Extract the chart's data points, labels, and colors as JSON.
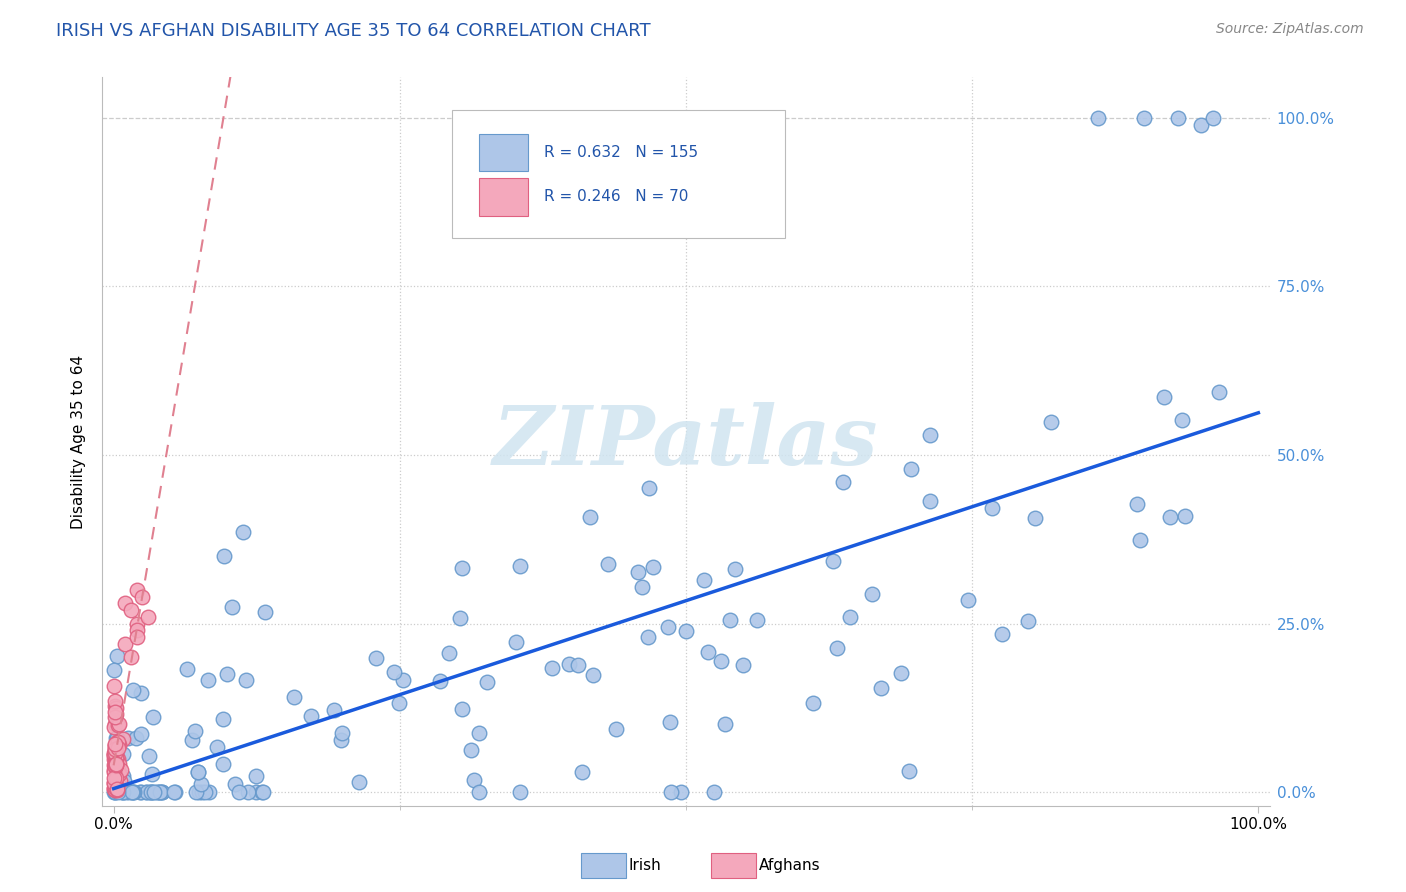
{
  "title": "IRISH VS AFGHAN DISABILITY AGE 35 TO 64 CORRELATION CHART",
  "source_text": "Source: ZipAtlas.com",
  "ylabel": "Disability Age 35 to 64",
  "irish_R": 0.632,
  "irish_N": 155,
  "afghan_R": 0.246,
  "afghan_N": 70,
  "irish_color": "#aec6e8",
  "irish_edge_color": "#6699cc",
  "afghan_color": "#f4a8bc",
  "afghan_edge_color": "#e06080",
  "irish_line_color": "#1a5adc",
  "afghan_line_color": "#e08090",
  "title_color": "#2255aa",
  "source_color": "#888888",
  "legend_text_color": "#2255aa",
  "watermark_text": "ZIPatlas",
  "watermark_color": "#d0e4f0",
  "right_tick_color": "#4a90d9",
  "grid_color": "#cccccc",
  "background": "#ffffff"
}
